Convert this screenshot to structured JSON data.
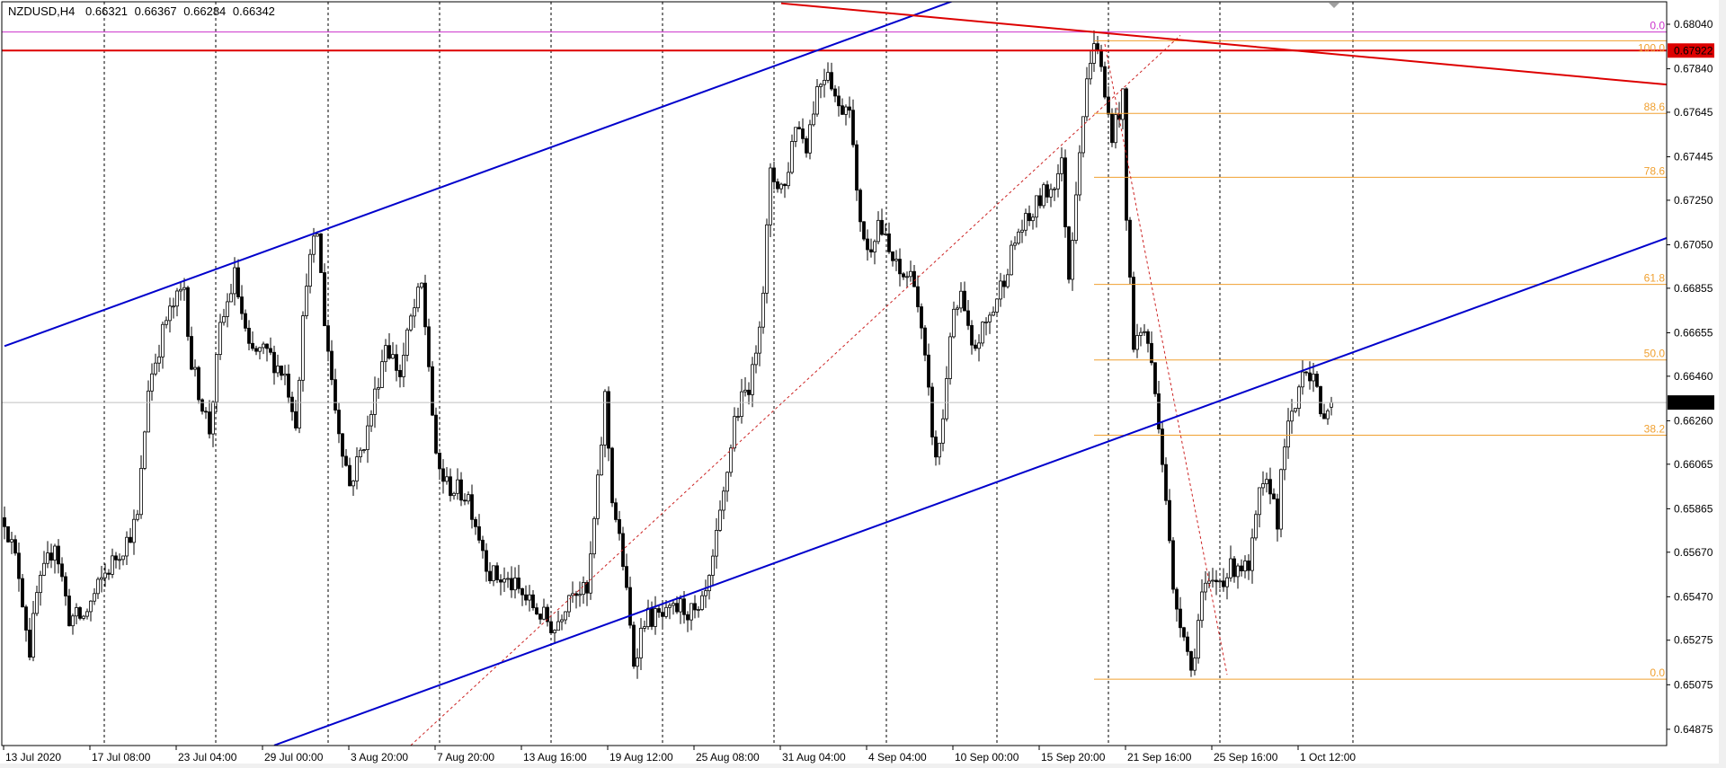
{
  "header": {
    "symbol": "NZDUSD,H4",
    "open": "0.66321",
    "high": "0.66367",
    "low": "0.66284",
    "close": "0.66342"
  },
  "colors": {
    "bull_body": "#ffffff",
    "bear_body": "#000000",
    "channel": "#0000cc",
    "resistance": "#dd0000",
    "fib": "#f0a030",
    "fib_top": "#cc33cc",
    "fib_trend": "#cc2222",
    "bid_line": "#c0c0c0"
  },
  "chart_data": {
    "type": "candlestick",
    "title": "NZDUSD,H4",
    "ylim": [
      0.648,
      0.68095
    ],
    "grid": "vertical-dashed",
    "price_ticks": [
      "0.68040",
      "0.67840",
      "0.67645",
      "0.67445",
      "0.67250",
      "0.67050",
      "0.66855",
      "0.66655",
      "0.66460",
      "0.66260",
      "0.66065",
      "0.65865",
      "0.65670",
      "0.65470",
      "0.65275",
      "0.65075",
      "0.64875"
    ],
    "time_ticks": [
      "13 Jul 2020",
      "17 Jul 08:00",
      "23 Jul 04:00",
      "29 Jul 00:00",
      "3 Aug 20:00",
      "7 Aug 20:00",
      "13 Aug 16:00",
      "19 Aug 12:00",
      "25 Aug 08:00",
      "31 Aug 04:00",
      "4 Sep 04:00",
      "10 Sep 00:00",
      "15 Sep 20:00",
      "21 Sep 16:00",
      "25 Sep 16:00",
      "1 Oct 12:00"
    ],
    "bars_per_time_tick": 24,
    "price_path_keyframes": [
      [
        0,
        0.65825
      ],
      [
        4,
        0.65575
      ],
      [
        7,
        0.65228
      ],
      [
        9,
        0.65476
      ],
      [
        14,
        0.65723
      ],
      [
        18,
        0.65377
      ],
      [
        22,
        0.65377
      ],
      [
        28,
        0.65575
      ],
      [
        34,
        0.65723
      ],
      [
        37,
        0.65822
      ],
      [
        40,
        0.66416
      ],
      [
        45,
        0.66713
      ],
      [
        50,
        0.66862
      ],
      [
        52,
        0.66515
      ],
      [
        57,
        0.66218
      ],
      [
        60,
        0.66664
      ],
      [
        64,
        0.66911
      ],
      [
        68,
        0.66565
      ],
      [
        73,
        0.66565
      ],
      [
        78,
        0.66466
      ],
      [
        81,
        0.66268
      ],
      [
        84,
        0.66911
      ],
      [
        87,
        0.67109
      ],
      [
        89,
        0.66713
      ],
      [
        92,
        0.66317
      ],
      [
        96,
        0.65971
      ],
      [
        101,
        0.66218
      ],
      [
        106,
        0.66614
      ],
      [
        110,
        0.66466
      ],
      [
        113,
        0.66713
      ],
      [
        116,
        0.66862
      ],
      [
        118,
        0.66515
      ],
      [
        120,
        0.6607
      ],
      [
        123,
        0.65971
      ],
      [
        129,
        0.65921
      ],
      [
        135,
        0.65575
      ],
      [
        141,
        0.65525
      ],
      [
        147,
        0.65426
      ],
      [
        153,
        0.65327
      ],
      [
        158,
        0.65525
      ],
      [
        162,
        0.65476
      ],
      [
        165,
        0.65971
      ],
      [
        167,
        0.66367
      ],
      [
        169,
        0.65921
      ],
      [
        172,
        0.65624
      ],
      [
        175,
        0.65179
      ],
      [
        178,
        0.65377
      ],
      [
        184,
        0.65377
      ],
      [
        188,
        0.65426
      ],
      [
        193,
        0.65377
      ],
      [
        196,
        0.65525
      ],
      [
        200,
        0.65921
      ],
      [
        203,
        0.66268
      ],
      [
        208,
        0.66466
      ],
      [
        211,
        0.66862
      ],
      [
        213,
        0.67357
      ],
      [
        217,
        0.67307
      ],
      [
        220,
        0.67604
      ],
      [
        223,
        0.67505
      ],
      [
        226,
        0.67753
      ],
      [
        229,
        0.67852
      ],
      [
        232,
        0.67654
      ],
      [
        235,
        0.67703
      ],
      [
        237,
        0.67258
      ],
      [
        240,
        0.6701
      ],
      [
        243,
        0.67159
      ],
      [
        246,
        0.6701
      ],
      [
        249,
        0.66911
      ],
      [
        253,
        0.66911
      ],
      [
        256,
        0.66515
      ],
      [
        259,
        0.6607
      ],
      [
        261,
        0.66268
      ],
      [
        263,
        0.66664
      ],
      [
        266,
        0.66812
      ],
      [
        269,
        0.66565
      ],
      [
        272,
        0.66664
      ],
      [
        275,
        0.66763
      ],
      [
        279,
        0.66961
      ],
      [
        282,
        0.67109
      ],
      [
        285,
        0.67159
      ],
      [
        288,
        0.67258
      ],
      [
        291,
        0.67307
      ],
      [
        294,
        0.67406
      ],
      [
        296,
        0.66911
      ],
      [
        299,
        0.67505
      ],
      [
        302,
        0.67901
      ],
      [
        304,
        0.67951
      ],
      [
        306,
        0.67703
      ],
      [
        308,
        0.67555
      ],
      [
        311,
        0.67703
      ],
      [
        312,
        0.67159
      ],
      [
        314,
        0.66614
      ],
      [
        317,
        0.66664
      ],
      [
        318,
        0.66614
      ],
      [
        321,
        0.66268
      ],
      [
        323,
        0.65921
      ],
      [
        325,
        0.65476
      ],
      [
        328,
        0.65327
      ],
      [
        330,
        0.65129
      ],
      [
        333,
        0.65476
      ],
      [
        336,
        0.65525
      ],
      [
        340,
        0.65575
      ],
      [
        343,
        0.65624
      ],
      [
        346,
        0.65575
      ],
      [
        349,
        0.65921
      ],
      [
        352,
        0.65971
      ],
      [
        354,
        0.65822
      ],
      [
        356,
        0.66169
      ],
      [
        359,
        0.66317
      ],
      [
        361,
        0.66515
      ],
      [
        364,
        0.66466
      ],
      [
        366,
        0.66268
      ],
      [
        367,
        0.66317
      ],
      [
        369,
        0.66342
      ]
    ],
    "last_bar": {
      "open": 0.66321,
      "high": 0.66367,
      "low": 0.66284,
      "close": 0.66342
    },
    "objects": {
      "channel_upper": {
        "from": [
          0,
          0.66595
        ],
        "to": [
          262,
          0.68134
        ]
      },
      "channel_lower": {
        "from": [
          75,
          0.64803
        ],
        "to": [
          463,
          0.67085
        ]
      },
      "resistance_trend": {
        "from": [
          216,
          0.68134
        ],
        "to": [
          463,
          0.67768
        ]
      },
      "resistance_level": {
        "price": 0.67922,
        "label": "0.67922"
      },
      "bid_level": {
        "price": 0.66342,
        "label": "0.66342"
      },
      "fib_top_trend": {
        "from": [
          113,
          0.64803
        ],
        "to": [
          327,
          0.6799
        ]
      },
      "fib_top_level": {
        "price": 0.68005,
        "label": "0.0"
      },
      "fib_retracement": {
        "start_bar": 303,
        "trend_from": [
          306,
          0.67951
        ],
        "trend_to": [
          340,
          0.6512
        ],
        "levels": [
          {
            "label": "100.0",
            "price": 0.67966
          },
          {
            "label": "88.6",
            "price": 0.6764
          },
          {
            "label": "78.6",
            "price": 0.67353
          },
          {
            "label": "61.8",
            "price": 0.66872
          },
          {
            "label": "50.0",
            "price": 0.66533
          },
          {
            "label": "38.2",
            "price": 0.66195
          },
          {
            "label": "0.0",
            "price": 0.651
          }
        ]
      }
    }
  }
}
